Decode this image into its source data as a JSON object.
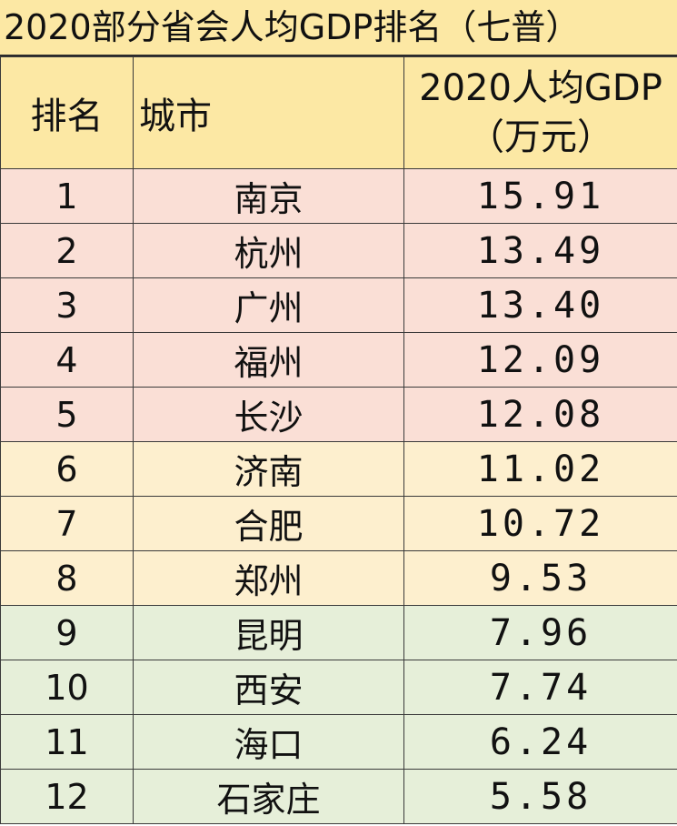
{
  "title": "2020部分省会人均GDP排名（七普）",
  "headers": {
    "rank": "排名",
    "city": "城市",
    "gdp_line1": "2020人均GDP",
    "gdp_line2": "（万元）"
  },
  "colors": {
    "header_bg": "#fce8a4",
    "tier_red": "#fadfd6",
    "tier_yellow": "#fdefce",
    "tier_green": "#e6efd9"
  },
  "rows": [
    {
      "rank": "1",
      "city": "南京",
      "gdp": "15.91",
      "tier": "red"
    },
    {
      "rank": "2",
      "city": "杭州",
      "gdp": "13.49",
      "tier": "red"
    },
    {
      "rank": "3",
      "city": "广州",
      "gdp": "13.40",
      "tier": "red"
    },
    {
      "rank": "4",
      "city": "福州",
      "gdp": "12.09",
      "tier": "red"
    },
    {
      "rank": "5",
      "city": "长沙",
      "gdp": "12.08",
      "tier": "red"
    },
    {
      "rank": "6",
      "city": "济南",
      "gdp": "11.02",
      "tier": "yellow"
    },
    {
      "rank": "7",
      "city": "合肥",
      "gdp": "10.72",
      "tier": "yellow"
    },
    {
      "rank": "8",
      "city": "郑州",
      "gdp": "9.53",
      "tier": "yellow"
    },
    {
      "rank": "9",
      "city": "昆明",
      "gdp": "7.96",
      "tier": "green"
    },
    {
      "rank": "10",
      "city": "西安",
      "gdp": "7.74",
      "tier": "green"
    },
    {
      "rank": "11",
      "city": "海口",
      "gdp": "6.24",
      "tier": "green"
    },
    {
      "rank": "12",
      "city": "石家庄",
      "gdp": "5.58",
      "tier": "green"
    }
  ]
}
